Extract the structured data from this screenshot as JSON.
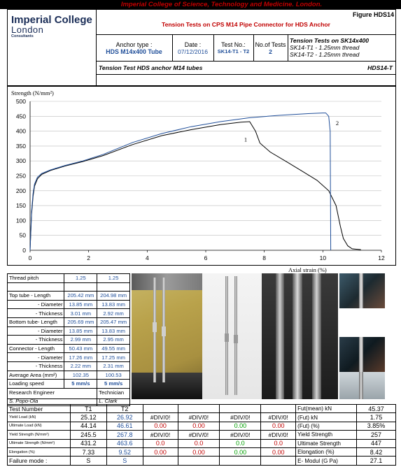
{
  "header": {
    "institution_banner": "Imperial College of Science, Technology and Medicine. London.",
    "logo_line1": "Imperial College",
    "logo_line2": "London",
    "logo_line3": "Consultants",
    "figure_label": "Figure HDS14",
    "main_title": "Tension Tests on CPS M14 Pipe Connector for HDS Anchor",
    "anchor_type_label": "Anchor type :",
    "anchor_type_value": "HDS M14x400 Tube",
    "date_label": "Date :",
    "date_value": "07/12/2016",
    "test_no_label": "Test No.:",
    "test_no_value": "SK14-T1 - T2",
    "no_tests_label": "No.of Tests",
    "no_tests_value": "2",
    "notes_title": "Tension Tests on SK14x400",
    "notes_line1": "SK14-T1 - 1.25mm thread",
    "notes_line2": "SK14-T2 - 1.25mm thread",
    "subtitle": "Tension Test HDS anchor M14 tubes",
    "subtitle_code": "HDS14-T"
  },
  "chart_data": {
    "type": "line",
    "ylabel": "Strength  (N/mm²)",
    "xlabel": "Axial strain  (%)",
    "xlim": [
      0,
      12
    ],
    "ylim": [
      0,
      500
    ],
    "xticks": [
      "0",
      "2",
      "4",
      "6",
      "8",
      "10",
      "12"
    ],
    "yticks": [
      "0",
      "50",
      "100",
      "150",
      "200",
      "250",
      "300",
      "350",
      "400",
      "450",
      "500"
    ],
    "series": [
      {
        "name": "1",
        "color": "#000000",
        "points": [
          [
            0,
            0
          ],
          [
            0.05,
            120
          ],
          [
            0.1,
            180
          ],
          [
            0.15,
            215
          ],
          [
            0.25,
            240
          ],
          [
            0.4,
            255
          ],
          [
            0.7,
            268
          ],
          [
            1.2,
            283
          ],
          [
            1.8,
            298
          ],
          [
            2.5,
            318
          ],
          [
            3.5,
            355
          ],
          [
            4.5,
            385
          ],
          [
            5.5,
            405
          ],
          [
            6.5,
            422
          ],
          [
            7.2,
            430
          ],
          [
            7.5,
            432
          ],
          [
            7.7,
            400
          ],
          [
            7.85,
            360
          ],
          [
            8.2,
            330
          ],
          [
            8.8,
            295
          ],
          [
            9.3,
            265
          ],
          [
            9.8,
            235
          ],
          [
            10.2,
            200
          ],
          [
            10.45,
            150
          ],
          [
            10.6,
            80
          ],
          [
            10.7,
            40
          ],
          [
            10.85,
            15
          ],
          [
            11.0,
            5
          ],
          [
            11.3,
            2
          ]
        ]
      },
      {
        "name": "2",
        "color": "#1f4e99",
        "points": [
          [
            0,
            0
          ],
          [
            0.05,
            130
          ],
          [
            0.1,
            190
          ],
          [
            0.15,
            222
          ],
          [
            0.25,
            245
          ],
          [
            0.4,
            258
          ],
          [
            0.7,
            270
          ],
          [
            1.2,
            285
          ],
          [
            1.8,
            300
          ],
          [
            2.5,
            322
          ],
          [
            3.5,
            362
          ],
          [
            4.5,
            392
          ],
          [
            5.5,
            415
          ],
          [
            6.5,
            432
          ],
          [
            7.5,
            445
          ],
          [
            8.5,
            453
          ],
          [
            9.5,
            459
          ],
          [
            10.0,
            461
          ],
          [
            10.1,
            461
          ],
          [
            10.2,
            450
          ],
          [
            10.25,
            400
          ],
          [
            10.27,
            0
          ]
        ]
      }
    ]
  },
  "specimen_table": {
    "rows": [
      {
        "label": "Thread pitch",
        "v1": "1.25",
        "v2": "1.25"
      },
      {
        "label": "",
        "v1": "",
        "v2": ""
      },
      {
        "label": "Top tube -  Length",
        "v1": "205.42 mm",
        "v2": "204.98 mm"
      },
      {
        "label": "- Diameter",
        "v1": "13.85 mm",
        "v2": "13.83 mm"
      },
      {
        "label": "- Thickness",
        "v1": "3.01 mm",
        "v2": "2.92 mm"
      },
      {
        "label": "Bottom tube- Length",
        "v1": "205.69 mm",
        "v2": "205.47 mm"
      },
      {
        "label": "- Diameter",
        "v1": "13.85 mm",
        "v2": "13.83 mm"
      },
      {
        "label": "- Thickness",
        "v1": "2.99 mm",
        "v2": "2.95 mm"
      },
      {
        "label": "Connector -  Length",
        "v1": "50.43 mm",
        "v2": "49.55 mm"
      },
      {
        "label": "- Diameter",
        "v1": "17.26 mm",
        "v2": "17.25 mm"
      },
      {
        "label": "- Thickness",
        "v1": "2.22 mm",
        "v2": "2.31 mm"
      },
      {
        "label": "Average Area (mm²)",
        "v1": "102.35",
        "v2": "100.53"
      },
      {
        "label": "Loading speed",
        "v1": "5 mm/s",
        "v2": "5 mm/s"
      }
    ],
    "engineer_label": "Research Engineer",
    "technician_label": "Technician",
    "engineer_name": "S. Popo-Ola",
    "technician_name": "L. Clark"
  },
  "results_table": {
    "header": [
      "Test  Number",
      "T1",
      "T2",
      "",
      "",
      "",
      ""
    ],
    "rows": [
      {
        "label": "Yield Load (kN)",
        "vals": [
          "25.12",
          "26.92",
          "#DIV/0!",
          "#DIV/0!",
          "#DIV/0!",
          "#DIV/0!"
        ]
      },
      {
        "label": "Ultimate Load (kN)",
        "vals": [
          "44.14",
          "46.61",
          "0.00",
          "0.00",
          "0.00",
          "0.00"
        ]
      },
      {
        "label": "Yield Strength (N/mm²)",
        "vals": [
          "245.5",
          "267.8",
          "#DIV/0!",
          "#DIV/0!",
          "#DIV/0!",
          "#DIV/0!"
        ]
      },
      {
        "label": "Ultimate Strength (N/mm²)",
        "vals": [
          "431.2",
          "463.6",
          "0.0",
          "0.0",
          "0.0",
          "0.0"
        ]
      },
      {
        "label": "Elongation (%)",
        "vals": [
          "7.33",
          "9.52",
          "0.00",
          "0.00",
          "0.00",
          "0.00"
        ]
      },
      {
        "label": "Failure mode :",
        "vals": [
          "S",
          "S",
          "",
          "",
          "",
          ""
        ]
      }
    ],
    "summary": [
      {
        "label": "Fut(mean)   kN",
        "value": "45.37"
      },
      {
        "label": "(Fut)         kN",
        "value": "1.75"
      },
      {
        "label": "(Fut)         (%)",
        "value": "3.85%"
      },
      {
        "label": "Yield Strength",
        "value": "257"
      },
      {
        "label": "Ultimate Strength",
        "value": "447"
      },
      {
        "label": "Elongation (%)",
        "value": "8.42"
      },
      {
        "label": "E- Modul (G Pa)",
        "value": "27.1"
      }
    ]
  }
}
